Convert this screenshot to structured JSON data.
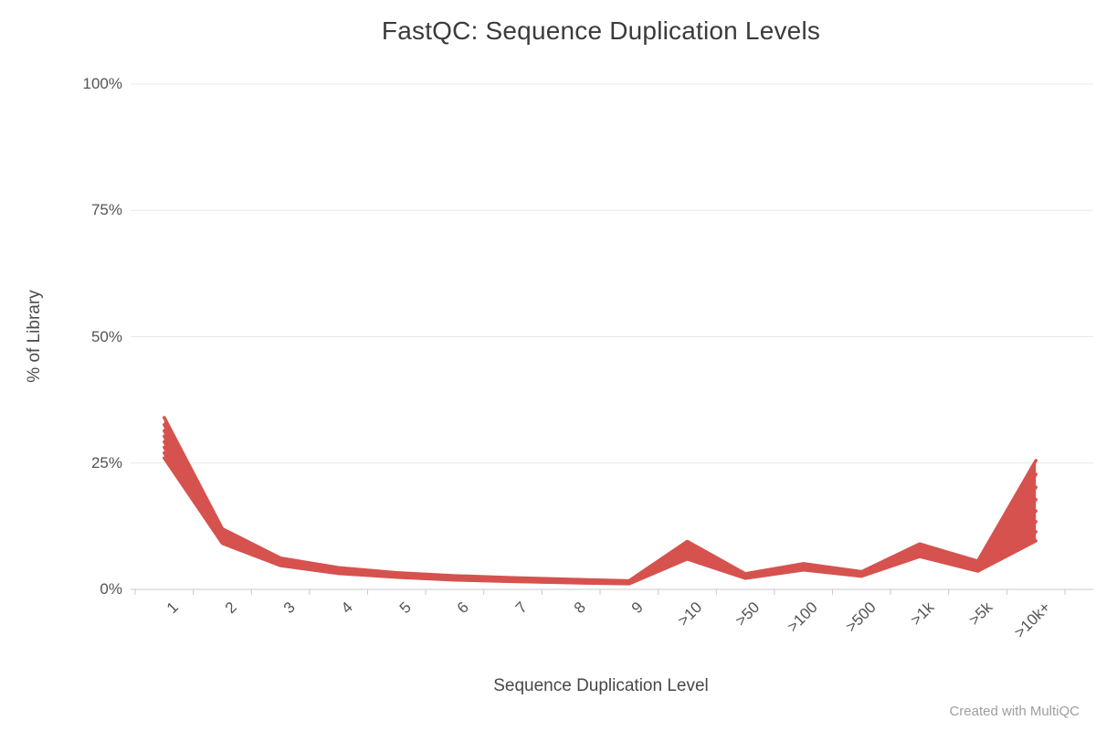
{
  "chart_data": {
    "type": "line",
    "title": "FastQC: Sequence Duplication Levels",
    "xlabel": "Sequence Duplication Level",
    "ylabel": "% of Library",
    "categories": [
      "1",
      "2",
      "3",
      "4",
      "5",
      "6",
      "7",
      "8",
      "9",
      ">10",
      ">50",
      ">100",
      ">500",
      ">1k",
      ">5k",
      ">10k+"
    ],
    "ylim": [
      0,
      100
    ],
    "y_ticks": [
      {
        "value": 0,
        "label": "0%"
      },
      {
        "value": 25,
        "label": "25%"
      },
      {
        "value": 50,
        "label": "50%"
      },
      {
        "value": 75,
        "label": "75%"
      },
      {
        "value": 100,
        "label": "100%"
      }
    ],
    "grid": true,
    "legend": "none",
    "line_color": "#d6524e",
    "band_fill": true,
    "series": [
      {
        "name": "series-1",
        "values": [
          34.0,
          12.0,
          6.2,
          4.3,
          3.3,
          2.7,
          2.3,
          2.0,
          1.7,
          9.5,
          3.1,
          5.1,
          3.5,
          9.0,
          5.6,
          25.5
        ]
      },
      {
        "name": "series-2",
        "values": [
          32.6,
          11.6,
          5.9,
          4.1,
          3.1,
          2.5,
          2.1,
          1.8,
          1.55,
          9.1,
          2.9,
          4.9,
          3.35,
          8.6,
          5.1,
          22.8
        ]
      },
      {
        "name": "series-3",
        "values": [
          31.4,
          11.2,
          5.7,
          3.9,
          2.95,
          2.35,
          2.0,
          1.7,
          1.45,
          8.6,
          2.75,
          4.7,
          3.2,
          8.2,
          4.8,
          20.2
        ]
      },
      {
        "name": "series-4",
        "values": [
          30.3,
          10.8,
          5.5,
          3.75,
          2.8,
          2.2,
          1.9,
          1.6,
          1.35,
          8.1,
          2.6,
          4.55,
          3.05,
          7.8,
          4.5,
          17.8
        ]
      },
      {
        "name": "series-5",
        "values": [
          29.2,
          10.4,
          5.3,
          3.6,
          2.7,
          2.1,
          1.8,
          1.5,
          1.3,
          7.5,
          2.5,
          4.4,
          2.95,
          7.4,
          4.3,
          15.5
        ]
      },
      {
        "name": "series-6",
        "values": [
          28.1,
          10.0,
          5.1,
          3.45,
          2.6,
          2.0,
          1.7,
          1.4,
          1.2,
          6.9,
          2.4,
          4.2,
          2.85,
          7.1,
          4.1,
          13.4
        ]
      },
      {
        "name": "series-7",
        "values": [
          27.0,
          9.5,
          4.9,
          3.3,
          2.5,
          1.9,
          1.6,
          1.35,
          1.15,
          6.4,
          2.3,
          4.0,
          2.7,
          6.8,
          3.85,
          11.4
        ]
      },
      {
        "name": "series-8",
        "values": [
          26.0,
          9.1,
          4.7,
          3.15,
          2.4,
          1.85,
          1.55,
          1.3,
          1.1,
          6.0,
          2.2,
          3.85,
          2.6,
          6.5,
          3.6,
          9.6
        ]
      }
    ]
  },
  "footer": {
    "credit": "Created with MultiQC"
  }
}
